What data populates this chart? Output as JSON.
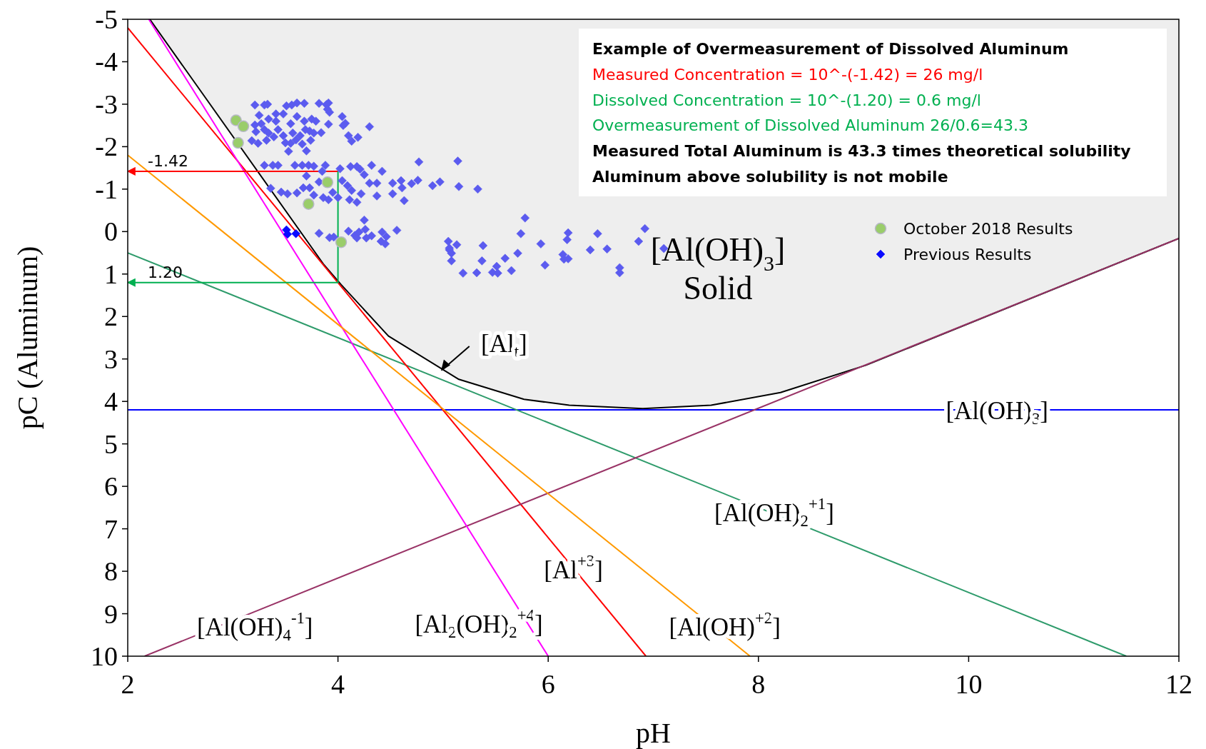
{
  "chart_data": {
    "type": "line",
    "xlabel": "pH",
    "ylabel": "pC (Aluminum)",
    "xlim": [
      2,
      12
    ],
    "xticks": [
      2,
      4,
      6,
      8,
      10,
      12
    ],
    "ylim": [
      10,
      -5
    ],
    "yticks": [
      -5,
      -4,
      -3,
      -2,
      -1,
      0,
      1,
      2,
      3,
      4,
      5,
      6,
      7,
      8,
      9,
      10
    ],
    "legend": "top right",
    "annotations": [
      "Example of Overmeasurement of Dissolved Aluminum",
      "Measured Concentration = 10^-(-1.42) = 26 mg/l",
      "Dissolved Concentration = 10^-(1.20) = 0.6 mg/l",
      "Overmeasurement of Dissolved Aluminum 26/0.6=43.3",
      "Measured Total Aluminum is 43.3 times theoretical solubility",
      "Aluminum above solubility is not mobile",
      "[Al(OH)$_{3}$]\nSolid",
      {
        "text": "-1.42",
        "x": 2,
        "y": -1.42
      },
      {
        "text": "1.20",
        "x": 2,
        "y": 1.2
      }
    ],
    "series": [
      {
        "name": "[Al$_{t}$]",
        "color": "#000000",
        "x": [
          2.21,
          3.86,
          4.03,
          4.48,
          5.15,
          5.77,
          6.2,
          6.9,
          7.55,
          8.21,
          9.02,
          12
        ],
        "values": [
          -5,
          0.76,
          1.25,
          2.46,
          3.48,
          3.95,
          4.09,
          4.17,
          4.09,
          3.79,
          3.15,
          0.16
        ]
      },
      {
        "name": "[Al(OH)$_{3}$]",
        "color": "#0000ff",
        "x": [
          2,
          12
        ],
        "values": [
          4.2,
          4.2
        ]
      },
      {
        "name": "[Al(OH)$_{2}$$^{+1}$]",
        "color": "#2e9b6b",
        "x": [
          2,
          11.5
        ],
        "values": [
          0.5,
          10
        ]
      },
      {
        "name": "[Al$^{+3}$]",
        "color": "#ff0000",
        "x": [
          2,
          6.93
        ],
        "values": [
          -4.8,
          10
        ]
      },
      {
        "name": "[Al(OH)$_{4}$$^{-1}$]",
        "color": "#993366",
        "x": [
          2.16,
          12
        ],
        "values": [
          10,
          0.16
        ]
      },
      {
        "name": "[Al$_{2}$(OH)$_{2}$$^{+4}$]",
        "color": "#ff00ff",
        "x": [
          2.2,
          6
        ],
        "values": [
          -5,
          10
        ]
      },
      {
        "name": "[Al(OH)$^{+2}$]",
        "color": "#ff9900",
        "x": [
          2,
          7.92
        ],
        "values": [
          -1.8,
          10
        ]
      },
      {
        "color": "#ff0000",
        "x": [
          4,
          2
        ],
        "values": [
          -1.42,
          -1.42
        ]
      },
      {
        "color": "#00b050",
        "x": [
          4,
          4,
          2
        ],
        "values": [
          -1.42,
          1.2,
          1.2
        ]
      },
      {
        "type": "scatter",
        "marker": "diamond",
        "color": "#5b5bef",
        "x": [
          3.21,
          3.3,
          3.33,
          3.51,
          3.56,
          3.61,
          3.68,
          3.82,
          3.89,
          3.91,
          3.9,
          3.92,
          4.04,
          4.07,
          4.05,
          4.3,
          3.91,
          3.84,
          4.1,
          4.19,
          4.13,
          3.7,
          3.53,
          3.66,
          3.74,
          3.24,
          3.18,
          3.22,
          3.25,
          3.27,
          3.34,
          3.41,
          3.48,
          3.55,
          3.61,
          3.68,
          3.75,
          3.79,
          3.73,
          3.57,
          3.48,
          3.39,
          3.32,
          3.43,
          3.64,
          3.5,
          3.55,
          3.6,
          3.3,
          3.21,
          3.34,
          3.41,
          3.69,
          3.77,
          3.3,
          3.38,
          3.43,
          3.59,
          3.66,
          3.72,
          3.77,
          3.88,
          3.7,
          3.85,
          4.02,
          4.12,
          4.18,
          4.21,
          4.32,
          4.42,
          4.25,
          4.77,
          5.14,
          3.36,
          3.46,
          3.52,
          3.61,
          3.67,
          3.73,
          3.82,
          3.77,
          3.86,
          3.95,
          4.04,
          4.09,
          4.13,
          4.18,
          4.22,
          4.3,
          4.37,
          4.37,
          4.52,
          4.52,
          4.6,
          4.61,
          4.63,
          4.7,
          4.76,
          4.9,
          4.97,
          5.15,
          5.33,
          4.11,
          4,
          3.91,
          3.82,
          3.92,
          3.96,
          4.1,
          4.16,
          4.2,
          4.26,
          4.25,
          4.32,
          4.27,
          4.42,
          4.46,
          4.41,
          4.45,
          4.56,
          5.05,
          5.13,
          5.06,
          5.38,
          4.18,
          5.06,
          5.08,
          5.08,
          5.19,
          5.32,
          5.37,
          5.47,
          5.51,
          5.52,
          5.59,
          5.65,
          5.71,
          5.74,
          5.78,
          5.93,
          5.97,
          6.14,
          6.15,
          6.19,
          6.18,
          6.19,
          6.4,
          6.47,
          6.56,
          6.68,
          6.68,
          6.86,
          6.92,
          7.1
        ],
        "values": [
          -2.98,
          -2.98,
          -3,
          -2.96,
          -2.98,
          -3.03,
          -3.02,
          -3.02,
          -2.99,
          -3.03,
          -2.88,
          -2.81,
          -2.71,
          -2.55,
          -2.5,
          -2.47,
          -2.53,
          -2.33,
          -2.26,
          -2.22,
          -2.13,
          -1.9,
          -1.89,
          -2.06,
          -2.15,
          -2.08,
          -2.14,
          -2.35,
          -2.74,
          -2.54,
          -2.65,
          -2.6,
          -2.77,
          -2.54,
          -2.71,
          -2.6,
          -2.65,
          -2.6,
          -2.37,
          -2.32,
          -2.26,
          -2.23,
          -2.15,
          -2.4,
          -2.26,
          -2.09,
          -2.08,
          -2.16,
          -2.4,
          -2.51,
          -2.32,
          -2.77,
          -2.4,
          -2.32,
          -1.56,
          -1.56,
          -1.56,
          -1.56,
          -1.56,
          -1.56,
          -1.54,
          -1.56,
          -1.31,
          -1.42,
          -1.48,
          -1.53,
          -1.53,
          -1.47,
          -1.56,
          -1.42,
          -1.34,
          -1.64,
          -1.66,
          -1.02,
          -0.93,
          -0.89,
          -0.91,
          -1.03,
          -1.03,
          -1.17,
          -0.86,
          -0.8,
          -0.92,
          -1.2,
          -1.08,
          -0.97,
          -0.69,
          -0.89,
          -1.14,
          -1.14,
          -0.84,
          -1.14,
          -0.89,
          -1.2,
          -1.03,
          -0.73,
          -1.13,
          -1.21,
          -1.08,
          -1.17,
          -1.06,
          -1,
          -0.75,
          -0.8,
          -0.75,
          0.04,
          0.14,
          0.13,
          -0.01,
          0.09,
          0.01,
          -0.05,
          -0.27,
          0.1,
          0.15,
          0.01,
          0.12,
          0.23,
          0.29,
          -0.03,
          0.23,
          0.31,
          0.43,
          0.33,
          0.15,
          0.39,
          0.51,
          0.69,
          0.98,
          0.97,
          0.69,
          0.96,
          0.82,
          0.98,
          0.63,
          0.92,
          0.51,
          0.05,
          -0.32,
          0.29,
          0.79,
          0.54,
          0.65,
          0.64,
          0.19,
          0.03,
          0.43,
          0.05,
          0.41,
          0.85,
          0.97,
          0.23,
          -0.07,
          0.4
        ]
      },
      {
        "name": "October 2018 Results",
        "type": "scatter",
        "marker": "circle",
        "color": "#9acd6a",
        "x": [
          3.03,
          3.1,
          3.05,
          3.9,
          3.72,
          4.03
        ],
        "values": [
          -2.62,
          -2.48,
          -2.09,
          -1.16,
          -0.65,
          0.25
        ]
      },
      {
        "name": "Previous Results",
        "type": "scatter",
        "marker": "diamond",
        "color": "#0a0aff",
        "x": [
          3.51,
          3.52,
          3.6
        ],
        "values": [
          -0.04,
          0.06,
          0.05
        ]
      }
    ]
  }
}
